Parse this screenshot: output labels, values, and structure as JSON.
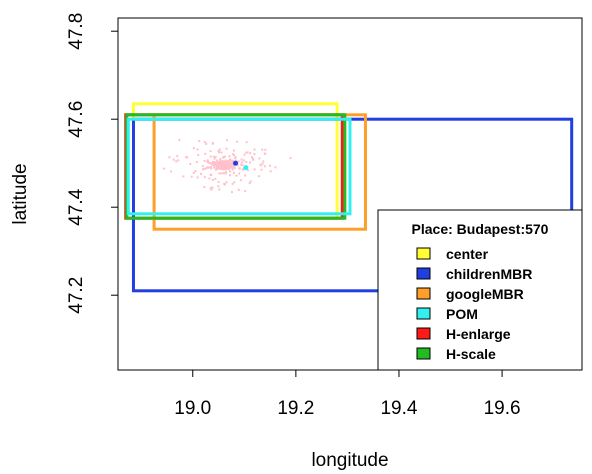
{
  "chart_data": {
    "type": "scatter",
    "title": "",
    "xlabel": "longitude",
    "ylabel": "latitude",
    "xlim": [
      18.855,
      19.755
    ],
    "ylim": [
      47.03,
      47.83
    ],
    "x_ticks": [
      19.0,
      19.2,
      19.4,
      19.6
    ],
    "x_tick_labels": [
      "19.0",
      "19.2",
      "19.4",
      "19.6"
    ],
    "y_ticks": [
      47.2,
      47.4,
      47.6,
      47.8
    ],
    "y_tick_labels": [
      "47.2",
      "47.4",
      "47.6",
      "47.8"
    ],
    "grid": false,
    "legend": {
      "title": "Place: Budapest:570",
      "placement": "bottom-right"
    },
    "series": [
      {
        "name": "center",
        "color": "#ffff33",
        "xmin": 18.885,
        "xmax": 19.28,
        "ymin": 47.375,
        "ymax": 47.635
      },
      {
        "name": "childrenMBR",
        "color": "#1f3fe0",
        "xmin": 18.885,
        "xmax": 19.735,
        "ymin": 47.21,
        "ymax": 47.6
      },
      {
        "name": "googleMBR",
        "color": "#ff9f2a",
        "xmin": 18.925,
        "xmax": 19.335,
        "ymin": 47.35,
        "ymax": 47.61
      },
      {
        "name": "POM",
        "color": "#33f0f0",
        "xmin": 18.875,
        "xmax": 19.305,
        "ymin": 47.385,
        "ymax": 47.6
      },
      {
        "name": "H-enlarge",
        "color": "#ff1a1a",
        "xmin": 18.87,
        "xmax": 19.29,
        "ymin": 47.375,
        "ymax": 47.61
      },
      {
        "name": "H-scale",
        "color": "#22bb22",
        "xmin": 18.872,
        "xmax": 19.295,
        "ymin": 47.375,
        "ymax": 47.61
      }
    ],
    "points": {
      "color": "#ffc0cb",
      "count": 240,
      "center": [
        19.06,
        47.495
      ]
    },
    "markers": [
      {
        "color": "#1f3fe0",
        "x": 19.083,
        "y": 47.5
      },
      {
        "color": "#33f0f0",
        "x": 19.103,
        "y": 47.49
      }
    ]
  }
}
